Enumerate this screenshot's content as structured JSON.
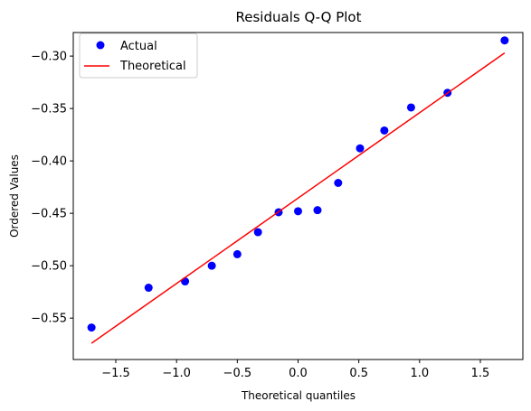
{
  "chart_data": {
    "type": "scatter",
    "title": "Residuals Q-Q Plot",
    "xlabel": "Theoretical quantiles",
    "ylabel": "Ordered Values",
    "xlim": [
      -1.85,
      1.85
    ],
    "ylim": [
      -0.5895,
      -0.2775
    ],
    "xticks": [
      -1.5,
      -1.0,
      -0.5,
      0.0,
      0.5,
      1.0,
      1.5
    ],
    "xtick_labels": [
      "−1.5",
      "−1.0",
      "−0.5",
      "0.0",
      "0.5",
      "1.0",
      "1.5"
    ],
    "yticks": [
      -0.55,
      -0.5,
      -0.45,
      -0.4,
      -0.35,
      -0.3
    ],
    "ytick_labels": [
      "−0.55",
      "−0.50",
      "−0.45",
      "−0.40",
      "−0.35",
      "−0.30"
    ],
    "grid": false,
    "legend_position": "top-left",
    "series": [
      {
        "name": "Actual",
        "kind": "points",
        "color": "#0000ff",
        "x": [
          -1.7,
          -1.23,
          -0.93,
          -0.71,
          -0.5,
          -0.33,
          -0.16,
          0.0,
          0.16,
          0.33,
          0.51,
          0.71,
          0.93,
          1.23,
          1.7
        ],
        "y": [
          -0.559,
          -0.521,
          -0.515,
          -0.5,
          -0.489,
          -0.468,
          -0.449,
          -0.448,
          -0.447,
          -0.421,
          -0.388,
          -0.371,
          -0.349,
          -0.335,
          -0.285
        ]
      },
      {
        "name": "Theoretical",
        "kind": "line",
        "color": "#ff0000",
        "x": [
          -1.7,
          1.7
        ],
        "y": [
          -0.574,
          -0.297
        ]
      }
    ]
  }
}
